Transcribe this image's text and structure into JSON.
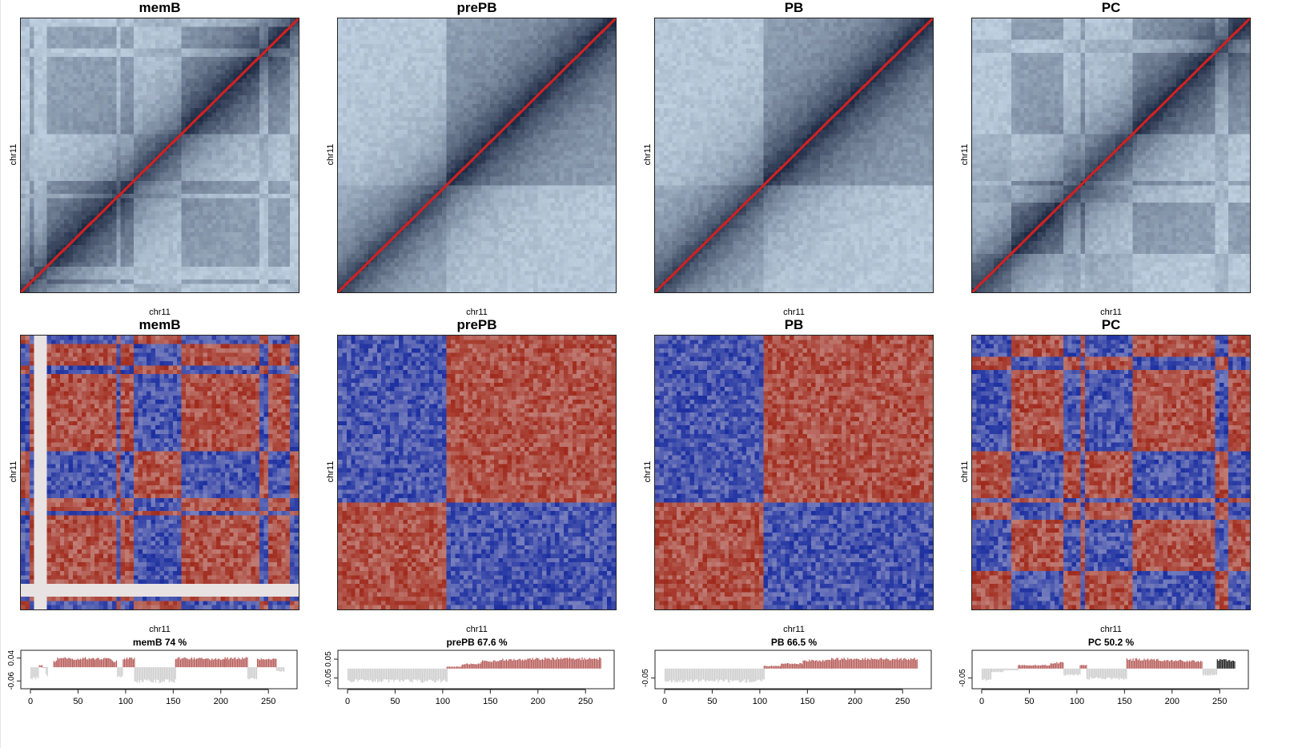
{
  "colors": {
    "contact_low": "#c4d6e6",
    "contact_high": "#1e2a44",
    "diagonal": "#cc2222",
    "corr_pos": "#a02a1c",
    "corr_neg": "#1c2fa0",
    "corr_mid": "#e8e2e2",
    "comp_A": "#b85f5c",
    "comp_B": "#cfcfcf",
    "comp_extra": "#222222"
  },
  "rows": {
    "contact": {
      "panels": [
        {
          "title": "memB",
          "xlabel": "chr11",
          "ylabel": "chr11"
        },
        {
          "title": "prePB",
          "xlabel": "chr11",
          "ylabel": "chr11"
        },
        {
          "title": "PB",
          "xlabel": "chr11",
          "ylabel": "chr11"
        },
        {
          "title": "PC",
          "xlabel": "chr11",
          "ylabel": "chr11"
        }
      ]
    },
    "correlation": {
      "panels": [
        {
          "title": "memB",
          "xlabel": "chr11",
          "ylabel": "chr11"
        },
        {
          "title": "prePB",
          "xlabel": "chr11",
          "ylabel": "chr11"
        },
        {
          "title": "PB",
          "xlabel": "chr11",
          "ylabel": "chr11"
        },
        {
          "title": "PC",
          "xlabel": "chr11",
          "ylabel": "chr11"
        }
      ]
    }
  },
  "chart_data": [
    {
      "type": "bar",
      "title": "memB 74 %",
      "xlim": [
        0,
        270
      ],
      "x_ticks": [
        0,
        50,
        100,
        150,
        200,
        250
      ],
      "y_ticks": [
        0.04,
        -0.06
      ],
      "ylim": [
        -0.08,
        0.06
      ],
      "segments": [
        {
          "from": 0,
          "to": 9,
          "value": -0.055
        },
        {
          "from": 9,
          "to": 12,
          "value": 0.01
        },
        {
          "from": 12,
          "to": 16,
          "value": 0.0
        },
        {
          "from": 16,
          "to": 18,
          "value": -0.04
        },
        {
          "from": 24,
          "to": 28,
          "value": 0.03
        },
        {
          "from": 28,
          "to": 44,
          "value": 0.045
        },
        {
          "from": 44,
          "to": 52,
          "value": 0.04
        },
        {
          "from": 52,
          "to": 66,
          "value": 0.045
        },
        {
          "from": 66,
          "to": 80,
          "value": 0.043
        },
        {
          "from": 80,
          "to": 86,
          "value": 0.04
        },
        {
          "from": 86,
          "to": 91,
          "value": 0.03
        },
        {
          "from": 91,
          "to": 97,
          "value": -0.045
        },
        {
          "from": 97,
          "to": 109,
          "value": 0.045
        },
        {
          "from": 109,
          "to": 152,
          "value": -0.07
        },
        {
          "from": 152,
          "to": 185,
          "value": 0.045
        },
        {
          "from": 185,
          "to": 204,
          "value": 0.04
        },
        {
          "from": 204,
          "to": 228,
          "value": 0.045
        },
        {
          "from": 228,
          "to": 238,
          "value": -0.06
        },
        {
          "from": 238,
          "to": 258,
          "value": 0.04
        },
        {
          "from": 258,
          "to": 266,
          "value": -0.02
        }
      ]
    },
    {
      "type": "bar",
      "title": "prePB 67.6 %",
      "xlim": [
        0,
        270
      ],
      "x_ticks": [
        0,
        50,
        100,
        150,
        200,
        250
      ],
      "y_ticks": [
        0.05,
        -0.05
      ],
      "ylim": [
        -0.09,
        0.08
      ],
      "segments": [
        {
          "from": 0,
          "to": 104,
          "value": -0.075
        },
        {
          "from": 104,
          "to": 120,
          "value": 0.012
        },
        {
          "from": 120,
          "to": 140,
          "value": 0.028
        },
        {
          "from": 140,
          "to": 160,
          "value": 0.045
        },
        {
          "from": 160,
          "to": 190,
          "value": 0.055
        },
        {
          "from": 190,
          "to": 266,
          "value": 0.06
        }
      ]
    },
    {
      "type": "bar",
      "title": "PB 66.5 %",
      "xlim": [
        0,
        270
      ],
      "x_ticks": [
        0,
        50,
        100,
        150,
        200,
        250
      ],
      "y_ticks": [
        -0.05
      ],
      "ylim": [
        -0.09,
        0.08
      ],
      "segments": [
        {
          "from": 0,
          "to": 104,
          "value": -0.075
        },
        {
          "from": 104,
          "to": 122,
          "value": 0.015
        },
        {
          "from": 122,
          "to": 145,
          "value": 0.03
        },
        {
          "from": 145,
          "to": 175,
          "value": 0.048
        },
        {
          "from": 175,
          "to": 266,
          "value": 0.058
        }
      ]
    },
    {
      "type": "bar",
      "title": "PC 50.2 %",
      "xlim": [
        0,
        270
      ],
      "x_ticks": [
        0,
        50,
        100,
        150,
        200,
        250
      ],
      "y_ticks": [
        -0.05
      ],
      "ylim": [
        -0.09,
        0.08
      ],
      "segments": [
        {
          "from": 0,
          "to": 10,
          "value": -0.07
        },
        {
          "from": 10,
          "to": 22,
          "value": -0.02
        },
        {
          "from": 22,
          "to": 38,
          "value": -0.01
        },
        {
          "from": 38,
          "to": 72,
          "value": 0.02
        },
        {
          "from": 72,
          "to": 86,
          "value": 0.035
        },
        {
          "from": 86,
          "to": 103,
          "value": -0.04
        },
        {
          "from": 103,
          "to": 110,
          "value": 0.02
        },
        {
          "from": 110,
          "to": 152,
          "value": -0.06
        },
        {
          "from": 152,
          "to": 185,
          "value": 0.055
        },
        {
          "from": 185,
          "to": 210,
          "value": 0.05
        },
        {
          "from": 210,
          "to": 232,
          "value": 0.045
        },
        {
          "from": 232,
          "to": 247,
          "value": -0.04
        },
        {
          "from": 247,
          "to": 266,
          "value": 0.05,
          "dark": true
        }
      ]
    }
  ]
}
